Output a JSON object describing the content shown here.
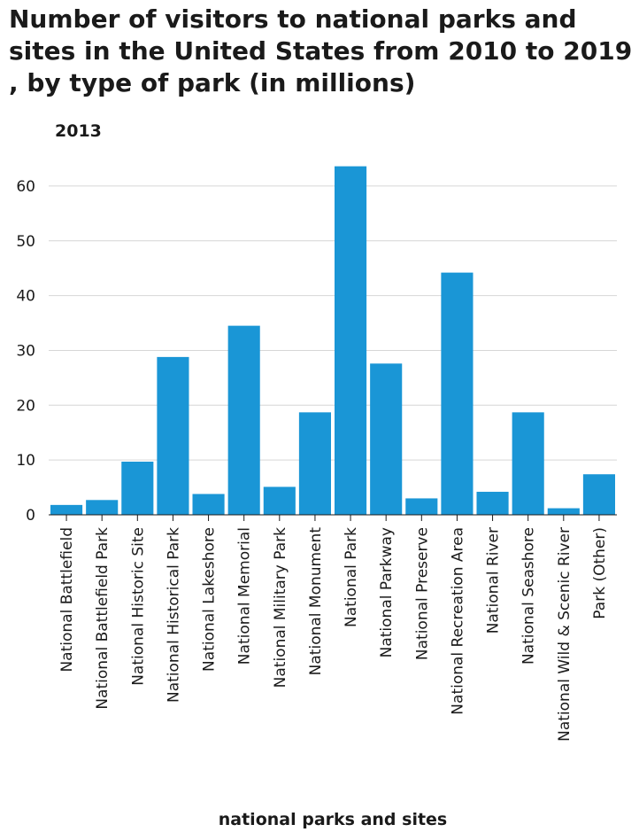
{
  "chart_data": {
    "type": "bar",
    "title": "Number of visitors to national parks and sites in the United States from 2010 to 2019 , by type of park (in millions)",
    "subtitle": "2013",
    "xlabel": "national parks and sites",
    "ylabel": "",
    "ylim": [
      0,
      65
    ],
    "yticks": [
      0,
      10,
      20,
      30,
      40,
      50,
      60
    ],
    "grid": true,
    "bar_color": "#1a96d6",
    "categories": [
      "National Battlefield",
      "National Battlefield Park",
      "National Historic Site",
      "National Historical Park",
      "National Lakeshore",
      "National Memorial",
      "National Military Park",
      "National Monument",
      "National Park",
      "National Parkway",
      "National Preserve",
      "National Recreation Area",
      "National River",
      "National Seashore",
      "National Wild & Scenic River",
      "Park (Other)"
    ],
    "values": [
      1.8,
      2.7,
      9.7,
      28.8,
      3.8,
      34.5,
      5.1,
      18.7,
      63.6,
      27.6,
      3.0,
      44.2,
      4.2,
      18.7,
      1.2,
      7.4
    ]
  }
}
